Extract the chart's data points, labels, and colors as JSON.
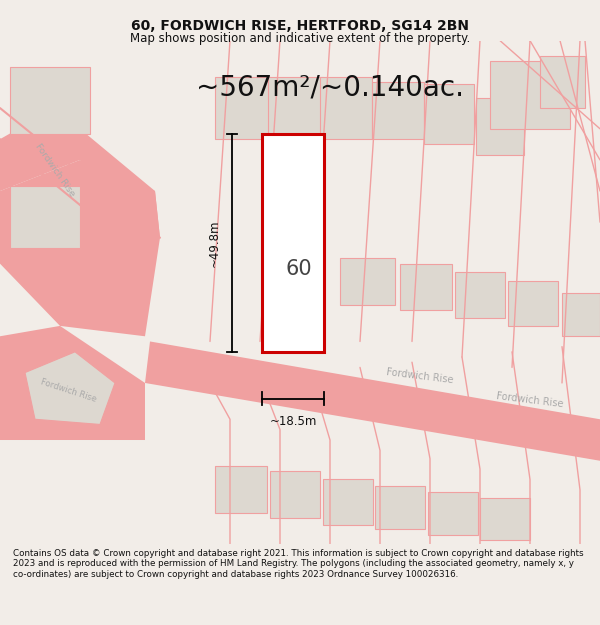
{
  "title": "60, FORDWICH RISE, HERTFORD, SG14 2BN",
  "subtitle": "Map shows position and indicative extent of the property.",
  "area_text": "~567m²/~0.140ac.",
  "dim_height": "~49.8m",
  "dim_width": "~18.5m",
  "property_number": "60",
  "footer": "Contains OS data © Crown copyright and database right 2021. This information is subject to Crown copyright and database rights 2023 and is reproduced with the permission of HM Land Registry. The polygons (including the associated geometry, namely x, y co-ordinates) are subject to Crown copyright and database rights 2023 Ordnance Survey 100026316.",
  "bg_color": "#f2ede8",
  "map_bg": "#ffffff",
  "road_color": "#f0a0a0",
  "building_color": "#ddd8d0",
  "property_outline_color": "#cc0000",
  "dim_color": "#111111",
  "title_color": "#111111",
  "footer_color": "#111111",
  "road_label_color": "#999999"
}
